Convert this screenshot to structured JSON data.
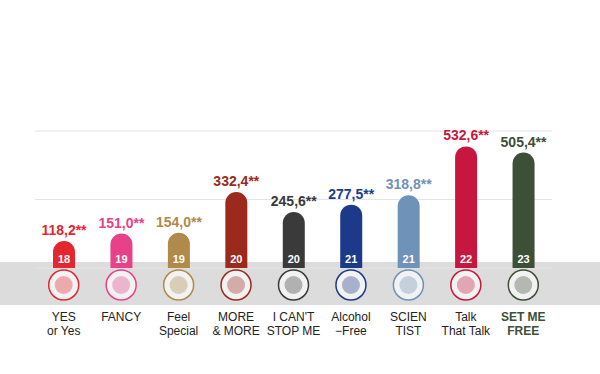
{
  "chart_data": {
    "type": "bar",
    "categories": [
      "YES\nor Yes",
      "FANCY",
      "Feel\nSpecial",
      "MORE\n& MORE",
      "I CAN'T\nSTOP ME",
      "Alcohol\n−Free",
      "SCIEN\nTIST",
      "Talk\nThat Talk",
      "SET ME\nFREE"
    ],
    "values": [
      118.2,
      151.0,
      154.0,
      332.4,
      245.6,
      277.5,
      318.8,
      532.6,
      505.4
    ],
    "value_labels": [
      "118,2**",
      "151,0**",
      "154,0**",
      "332,4**",
      "245,6**",
      "277,5**",
      "318,8**",
      "532,6**",
      "505,4**"
    ],
    "bar_numbers": [
      18,
      19,
      19,
      20,
      20,
      21,
      21,
      22,
      23
    ],
    "colors": [
      "#e3262f",
      "#e8418a",
      "#b08a4a",
      "#9c2a1c",
      "#3a3a3a",
      "#1d3a8a",
      "#6f92b8",
      "#c8173f",
      "#3e4f38"
    ],
    "ylim": [
      0,
      600
    ],
    "yticks": [
      0,
      300,
      600
    ],
    "grid": true,
    "data_labels": true,
    "tick_labels": "x"
  }
}
